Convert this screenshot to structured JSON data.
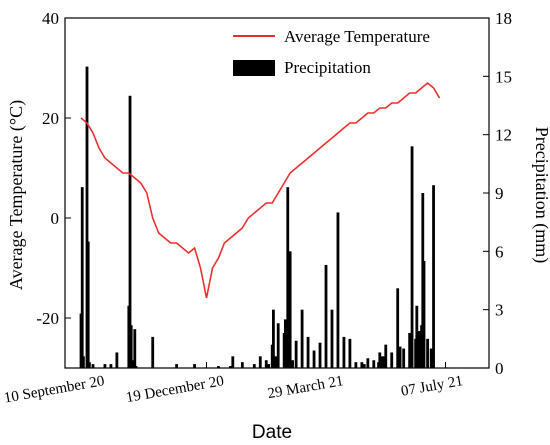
{
  "chart_data": {
    "type": "line+bar",
    "xlabel": "Date",
    "y_left_label": "Average Temperature (°C)",
    "y_right_label": "Precipitation (mm)",
    "y_left_lim": [
      -30,
      40
    ],
    "y_right_lim": [
      0,
      18
    ],
    "y_left_ticks": [
      -20,
      0,
      20,
      40
    ],
    "y_right_ticks": [
      0,
      3,
      6,
      9,
      12,
      15,
      18
    ],
    "x_ticks": [
      "10 September 20",
      "19 December 20",
      "29 March 21",
      "07 July 21"
    ],
    "x_tick_days": [
      0,
      100,
      200,
      300
    ],
    "legend_position": "top-right",
    "series": [
      {
        "name": "Average Temperature",
        "kind": "line",
        "color": "#e8312f",
        "x": [
          -5,
          0,
          5,
          10,
          15,
          20,
          25,
          30,
          35,
          40,
          45,
          50,
          55,
          60,
          65,
          70,
          75,
          80,
          85,
          90,
          95,
          100,
          105,
          110,
          115,
          120,
          125,
          130,
          135,
          140,
          145,
          150,
          155,
          160,
          165,
          170,
          175,
          180,
          185,
          190,
          195,
          200,
          205,
          210,
          215,
          220,
          225,
          230,
          235,
          240,
          245,
          250,
          255,
          260,
          265,
          270,
          275,
          280,
          285,
          290,
          295
        ],
        "y": [
          20,
          19,
          17,
          14,
          12,
          11,
          10,
          9,
          9,
          8,
          7,
          5,
          0,
          -3,
          -4,
          -5,
          -5,
          -6,
          -7,
          -6,
          -10,
          -16,
          -10,
          -8,
          -5,
          -4,
          -3,
          -2,
          0,
          1,
          2,
          3,
          3,
          5,
          7,
          9,
          10,
          11,
          12,
          13,
          14,
          15,
          16,
          17,
          18,
          19,
          19,
          20,
          21,
          21,
          22,
          22,
          23,
          23,
          24,
          25,
          25,
          26,
          27,
          26,
          24
        ]
      },
      {
        "name": "Precipitation",
        "kind": "bar",
        "color": "#000000",
        "x": [
          -5,
          -4,
          -3,
          0,
          1,
          2,
          5,
          15,
          20,
          25,
          35,
          36,
          37,
          38,
          40,
          41,
          55,
          75,
          90,
          110,
          120,
          122,
          130,
          140,
          145,
          150,
          152,
          155,
          156,
          158,
          160,
          165,
          166,
          168,
          170,
          172,
          175,
          180,
          185,
          190,
          195,
          200,
          205,
          210,
          215,
          220,
          225,
          230,
          232,
          235,
          240,
          244,
          245,
          246,
          248,
          250,
          255,
          260,
          262,
          265,
          270,
          272,
          275,
          276,
          278,
          280,
          281,
          282,
          285,
          288,
          290
        ],
        "y": [
          2.8,
          9.3,
          0.6,
          15.5,
          6.5,
          0.3,
          0.2,
          0.2,
          0.2,
          0.8,
          3.2,
          14.0,
          2.2,
          0.4,
          2.0,
          0.1,
          1.6,
          0.2,
          0.2,
          0.1,
          0.1,
          0.6,
          0.3,
          0.2,
          0.6,
          0.4,
          0.2,
          1.2,
          3.0,
          0.6,
          2.3,
          1.8,
          2.5,
          9.3,
          6.0,
          0.4,
          1.4,
          3.0,
          1.6,
          0.9,
          1.3,
          5.3,
          3.0,
          8.0,
          1.6,
          1.5,
          0.3,
          0.3,
          0.2,
          0.5,
          0.4,
          0.3,
          0.8,
          0.6,
          0.6,
          1.2,
          0.8,
          4.1,
          1.1,
          1.0,
          1.8,
          11.4,
          1.5,
          3.2,
          1.9,
          2.2,
          9.0,
          5.5,
          1.5,
          1.0,
          9.4
        ]
      }
    ]
  }
}
